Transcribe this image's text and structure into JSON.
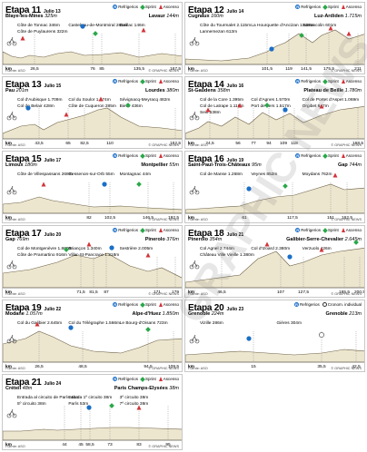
{
  "colors": {
    "profile": "#ede6cf",
    "refreshment": "#1a6fc9",
    "sprint": "#2aa84a",
    "climb": "#d2333a"
  },
  "legend": {
    "refreshment": "Refrigerios",
    "sprint": "Sprint",
    "climb": "Ascenso",
    "tt": "Cronom. individual"
  },
  "footer": {
    "source": "Fuente: ASO",
    "credit": "© GRAPHIC NEWS"
  },
  "watermark": "GRAPHIC NEWS",
  "stages": [
    {
      "title": "Etapa 11",
      "date": "Julio 13",
      "start": "Blaye-les-Mines",
      "start_alt": "325m",
      "finish": "Lavaur",
      "finish_alt": "144m",
      "km": [
        "26,5",
        "76",
        "85",
        "135,5",
        "167,5"
      ],
      "peaks": [
        "Côte de Tonnac 346m",
        "Castelnau-de-Montmiral 285m",
        "Gaillac 146m",
        "Côte de Puylaurens 322m"
      ]
    },
    {
      "title": "Etapa 12",
      "date": "Julio 14",
      "start": "Cugnaux",
      "start_alt": "160m",
      "finish": "Luz-Ardiden",
      "finish_alt": "1.715m",
      "km": [
        "101,5",
        "119",
        "141,5",
        "175,5",
        "211"
      ],
      "peaks": [
        "Côte du Tourmalet 2.115m",
        "La Hourquette d'Ancizan 1.538m",
        "Sarrancolin 601m",
        "Lannemezan 613m"
      ]
    },
    {
      "title": "Etapa 13",
      "date": "Julio 15",
      "start": "Pau",
      "start_alt": "201m",
      "finish": "Lourdes",
      "finish_alt": "380m",
      "km": [
        "43,5",
        "65",
        "82,5",
        "110",
        "152,5"
      ],
      "peaks": [
        "Col d'Aubisque 1.709m",
        "Col du Soulor 1.474m",
        "Sévignacq-Meyracq 482m",
        "Col de Belair 428m",
        "Côte de Cuqueron 285m",
        "Bielle 436m"
      ]
    },
    {
      "title": "Etapa 14",
      "date": "Julio 16",
      "start": "St-Gaudens",
      "start_alt": "358m",
      "finish": "Plateau de Beille",
      "finish_alt": "1.780m",
      "km": [
        "24,5",
        "56",
        "77",
        "94",
        "109",
        "118",
        "168,5"
      ],
      "peaks": [
        "Col de la Core 1.395m",
        "Col d'Agnes 1.570m",
        "Col de Portet d'Aspet 1.069m",
        "Col de Latrape 1.110m",
        "Port de Lers 1.517m",
        "Orgibet 647m",
        "Seix 538m"
      ]
    },
    {
      "title": "Etapa 15",
      "date": "Julio 17",
      "start": "Limoux",
      "start_alt": "180m",
      "finish": "Montpellier",
      "finish_alt": "55m",
      "km": [
        "82",
        "102,5",
        "146,5",
        "192,5"
      ],
      "peaks": [
        "Côte de Villespassans 268m",
        "Gessenon-sur-Orb 55m",
        "Montagnac 44m"
      ]
    },
    {
      "title": "Etapa 16",
      "date": "Julio 19",
      "start": "Saint-Paul-Trois-Châteaux",
      "start_alt": "95m",
      "finish": "Gap",
      "finish_alt": "744m",
      "km": [
        "61",
        "117,5",
        "151",
        "162,5"
      ],
      "peaks": [
        "Col de Manse 1.268m",
        "Veynes 852m",
        "Moydans 762m"
      ]
    },
    {
      "title": "Etapa 17",
      "date": "Julio 20",
      "start": "Gap",
      "start_alt": "769m",
      "finish": "Pinerolo",
      "finish_alt": "376m",
      "km": [
        "71,5",
        "81,5",
        "87",
        "171",
        "179"
      ],
      "peaks": [
        "Col de Montgenèvre 1.860m",
        "Briançon 1.340m",
        "Sestrière 2.005m",
        "Côte de Pramartino 916m",
        "Villar-St-Pancrace 1.218m"
      ]
    },
    {
      "title": "Etapa 18",
      "date": "Julio 21",
      "start": "Pinerolo",
      "start_alt": "354m",
      "finish": "Galibier-Serre-Chevalier",
      "finish_alt": "2.645m",
      "km": [
        "46,5",
        "107",
        "127,5",
        "185,5",
        "200,5"
      ],
      "peaks": [
        "Col Agnel 2.744m",
        "Col d'Izoard 2.380m",
        "Verzuolo 426m",
        "Château Ville Vieille 1.380m"
      ]
    },
    {
      "title": "Etapa 19",
      "date": "Julio 22",
      "start": "Modane",
      "start_alt": "1.057m",
      "finish": "Alpe-d'Huez",
      "finish_alt": "1.850m",
      "km": [
        "26,5",
        "48,5",
        "94,5",
        "109,5"
      ],
      "peaks": [
        "Col du Galibier 2.645m",
        "Col du Télégraphe 1.566m",
        "Le Bourg-d'Oisans 723m"
      ]
    },
    {
      "title": "Etapa 20",
      "date": "Julio 23",
      "start": "Grenoble",
      "start_alt": "224m",
      "finish": "Grenoble",
      "finish_alt": "213m",
      "km": [
        "15",
        "35,5",
        "42,5"
      ],
      "peaks": [
        "Vizille 286m",
        "Gières 304m"
      ]
    },
    {
      "title": "Etapa 21",
      "date": "Julio 24",
      "start": "Créteil",
      "start_alt": "48m",
      "finish": "Paris Champs-Elysées",
      "finish_alt": "38m",
      "km": [
        "44",
        "45",
        "58,5",
        "73",
        "83",
        "95"
      ],
      "peaks": [
        "Entrada al circuito de París 41m",
        "Saluda 1º circuito 38m",
        "3º circuito 38m",
        "5º circuito 38m",
        "París 53m",
        "7º circuito 38m"
      ]
    }
  ]
}
